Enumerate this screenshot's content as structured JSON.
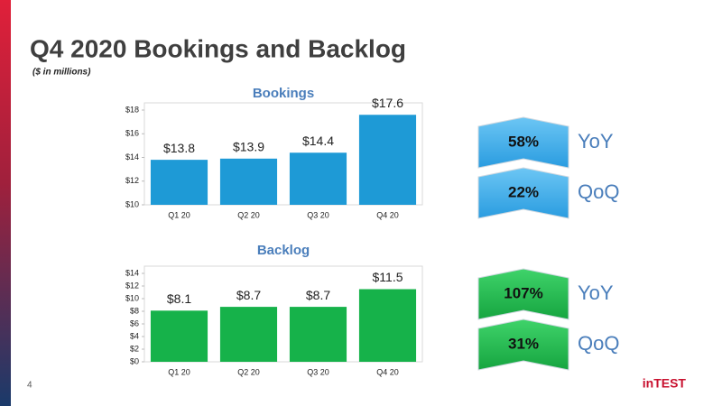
{
  "header": {
    "title": "Q4 2020 Bookings and Backlog",
    "subtitle": "($ in millions)"
  },
  "chart_data": [
    {
      "type": "bar",
      "title": "Bookings",
      "categories": [
        "Q1 20",
        "Q2 20",
        "Q3 20",
        "Q4 20"
      ],
      "values": [
        13.8,
        13.9,
        14.4,
        17.6
      ],
      "value_labels": [
        "$13.8",
        "$13.9",
        "$14.4",
        "$17.6"
      ],
      "color": "#1e9ad6",
      "ylim": [
        10,
        18
      ],
      "yticks": [
        {
          "value": 10,
          "label": "$10"
        },
        {
          "value": 12,
          "label": "$12"
        },
        {
          "value": 14,
          "label": "$14"
        },
        {
          "value": 16,
          "label": "$16"
        },
        {
          "value": 18,
          "label": "$18"
        }
      ],
      "grid": false
    },
    {
      "type": "bar",
      "title": "Backlog",
      "categories": [
        "Q1 20",
        "Q2 20",
        "Q3 20",
        "Q4 20"
      ],
      "values": [
        8.1,
        8.7,
        8.7,
        11.5
      ],
      "value_labels": [
        "$8.1",
        "$8.7",
        "$8.7",
        "$11.5"
      ],
      "color": "#16b24a",
      "ylim": [
        0,
        14
      ],
      "yticks": [
        {
          "value": 0,
          "label": "$0"
        },
        {
          "value": 2,
          "label": "$2"
        },
        {
          "value": 4,
          "label": "$4"
        },
        {
          "value": 6,
          "label": "$6"
        },
        {
          "value": 8,
          "label": "$8"
        },
        {
          "value": 10,
          "label": "$10"
        },
        {
          "value": 12,
          "label": "$12"
        },
        {
          "value": 14,
          "label": "$14"
        }
      ],
      "grid": false
    }
  ],
  "badges": [
    {
      "value": "58%",
      "label": "YoY"
    },
    {
      "value": "22%",
      "label": "QoQ"
    },
    {
      "value": "107%",
      "label": "YoY"
    },
    {
      "value": "31%",
      "label": "QoQ"
    }
  ],
  "footer": {
    "page": "4",
    "logo": "inTEST"
  }
}
